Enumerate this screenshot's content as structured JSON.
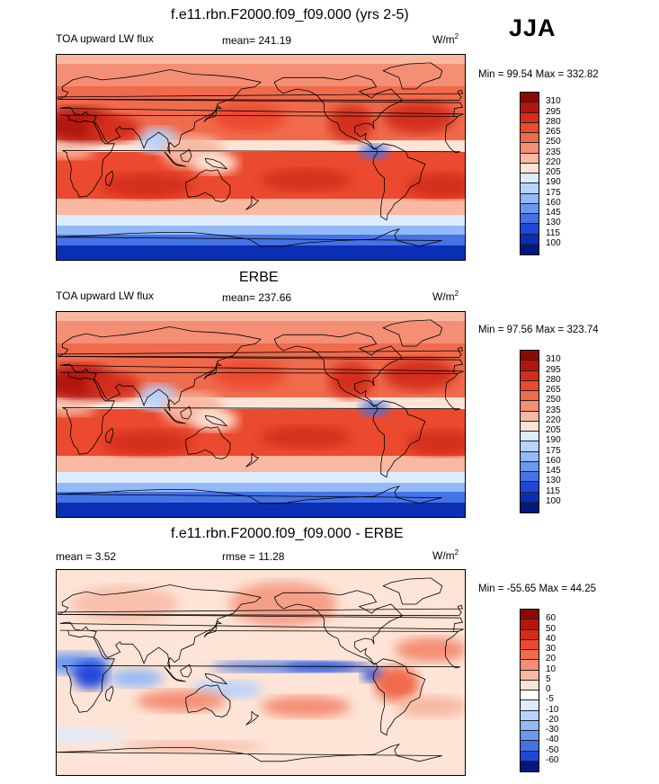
{
  "season": "JJA",
  "panels": [
    {
      "title": "f.e11.rbn.F2000.f09_f09.000 (yrs 2-5)",
      "left_label": "TOA upward LW flux",
      "center_label": "mean= 241.19",
      "units_base": "W/m",
      "units_exp": "2",
      "minmax": "Min =  99.54 Max = 332.82",
      "colorbar_labels": [
        "310",
        "295",
        "280",
        "265",
        "250",
        "235",
        "220",
        "205",
        "190",
        "175",
        "160",
        "145",
        "130",
        "115",
        "100"
      ]
    },
    {
      "title": "ERBE",
      "left_label": "TOA upward LW flux",
      "center_label": "mean= 237.66",
      "units_base": "W/m",
      "units_exp": "2",
      "minmax": "Min =  97.56 Max = 323.74",
      "colorbar_labels": [
        "310",
        "295",
        "280",
        "265",
        "250",
        "235",
        "220",
        "205",
        "190",
        "175",
        "160",
        "145",
        "130",
        "115",
        "100"
      ]
    },
    {
      "title": "f.e11.rbn.F2000.f09_f09.000 - ERBE",
      "left_label": "mean =   3.52",
      "center_label": "rmse =  11.28",
      "units_base": "W/m",
      "units_exp": "2",
      "minmax": "Min = -55.65 Max =  44.25",
      "colorbar_labels": [
        "60",
        "50",
        "40",
        "30",
        "20",
        "10",
        "5",
        "0",
        "-5",
        "-10",
        "-20",
        "-30",
        "-40",
        "-50",
        "-60"
      ]
    }
  ],
  "palette_flux": [
    "#8b0a00",
    "#b3160d",
    "#d42e1a",
    "#ec4a2e",
    "#f06a4c",
    "#f48e74",
    "#f8b8a2",
    "#fde4d6",
    "#dcebfd",
    "#b8d3fb",
    "#93b9f6",
    "#6c98ef",
    "#4573e6",
    "#2048d8",
    "#0a2fb5",
    "#02187e"
  ],
  "palette_diff": [
    "#8b0a00",
    "#b3160d",
    "#d42e1a",
    "#ec4a2e",
    "#f06a4c",
    "#f48e74",
    "#f8b8a2",
    "#fde4d6",
    "#ffffff",
    "#dcebfd",
    "#b8d3fb",
    "#93b9f6",
    "#6c98ef",
    "#4573e6",
    "#2048d8",
    "#02187e"
  ]
}
